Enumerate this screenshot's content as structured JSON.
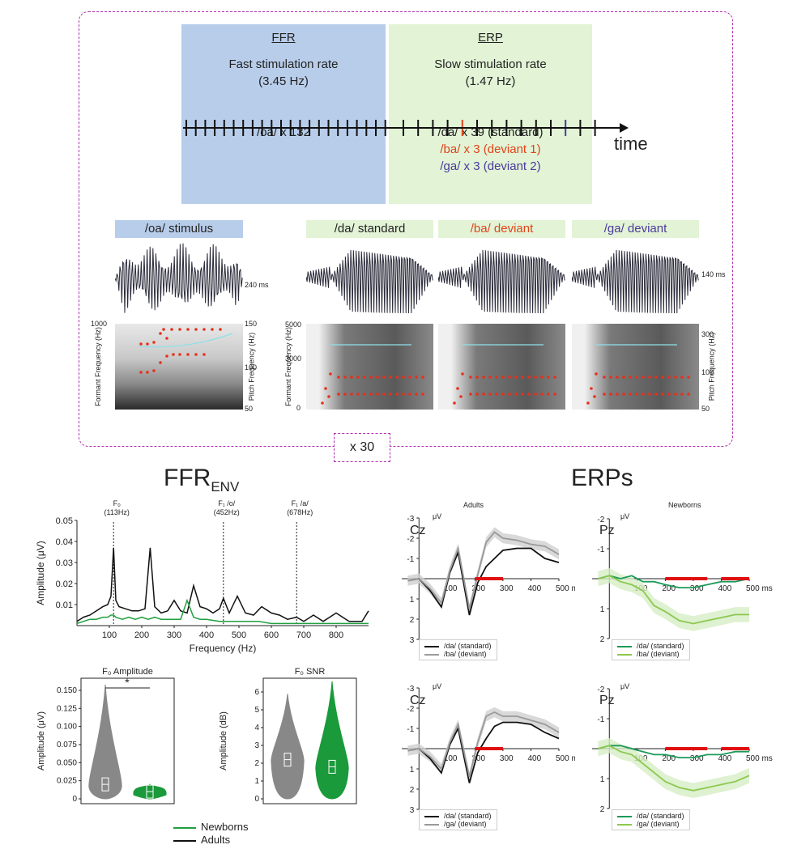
{
  "design": {
    "ffr_panel": {
      "title": "FFR",
      "rate_label": "Fast stimulation rate",
      "rate_value": "(3.45 Hz)",
      "count": "/oa/ x 132"
    },
    "erp_panel": {
      "title": "ERP",
      "rate_label": "Slow stimulation rate",
      "rate_value": "(1.47 Hz)",
      "standard": "/da/ x 39 (standard)",
      "deviant1": "/ba/ x 3 (deviant 1)",
      "deviant2": "/ga/ x 3 (deviant 2)"
    },
    "time_label": "time",
    "repeat_label": "x 30",
    "colors": {
      "deviant1": "#e0451a",
      "deviant2": "#4a3a9c",
      "ffr_bg": "#b8cdea",
      "erp_bg": "#e2f3d6",
      "frame": "#b030b0"
    }
  },
  "stimuli": {
    "oa": {
      "title": "/oa/ stimulus",
      "duration": "240 ms",
      "formant_axis": "Formant Frequency (Hz)",
      "pitch_axis": "Pitch Frequency (Hz)",
      "formant_ticks": [
        "1000"
      ],
      "pitch_ticks": [
        "150",
        "100",
        "50"
      ]
    },
    "da": {
      "title": "/da/ standard",
      "duration": "140 ms"
    },
    "ba": {
      "title": "/ba/ deviant"
    },
    "ga": {
      "title": "/ga/ deviant",
      "duration": "140 ms"
    },
    "formant_axis": "Formant Frequency (Hz)",
    "pitch_axis": "Pitch Frequency (Hz)",
    "formant_ticks": [
      "5000",
      "3000",
      "0"
    ],
    "pitch_ticks": [
      "300",
      "100",
      "50"
    ]
  },
  "ffr_section": {
    "title": "FFR",
    "title_sub": "ENV",
    "spectrum": {
      "ylabel": "Amplitude (μV)",
      "xlabel": "Frequency (Hz)",
      "yticks": [
        "0.05",
        "0.04",
        "0.03",
        "0.02",
        "0.01"
      ],
      "xticks": [
        "100",
        "200",
        "300",
        "400",
        "500",
        "600",
        "700",
        "800"
      ],
      "markers": [
        {
          "label": "F₀",
          "value": "(113Hz)"
        },
        {
          "label": "F₁ /o/",
          "value": "(452Hz)"
        },
        {
          "label": "F₁ /a/",
          "value": "(678Hz)"
        }
      ]
    },
    "violin_amp": {
      "title": "F₀ Amplitude",
      "ylabel": "Amplitude (μV)",
      "yticks": [
        "0.150",
        "0.125",
        "0.100",
        "0.075",
        "0.050",
        "0.025",
        "0"
      ],
      "sig": "*"
    },
    "violin_snr": {
      "title": "F₀ SNR",
      "ylabel": "Amplitude (dB)",
      "yticks": [
        "6",
        "5",
        "4",
        "3",
        "2",
        "1",
        "0"
      ]
    },
    "legend": {
      "newborns": "Newborns",
      "adults": "Adults"
    }
  },
  "erp_section": {
    "title": "ERPs",
    "adults_title": "Adults",
    "newborns_title": "Newborns",
    "cz": "Cz",
    "pz": "Pz",
    "unit": "μV",
    "ms_ticks": [
      "100",
      "200",
      "300",
      "400",
      "500 ms"
    ],
    "adult_yticks": [
      "-3",
      "-2",
      "-1",
      "1",
      "2",
      "3"
    ],
    "newborn_yticks": [
      "-2",
      "-1",
      "1",
      "2"
    ],
    "legends": {
      "da_std": "/da/ (standard)",
      "ba_dev": "/ba/ (deviant)",
      "ga_dev": "/ga/ (deviant)"
    }
  },
  "chart_data": [
    {
      "type": "line",
      "title": "FFR ENV spectrum",
      "xlabel": "Frequency (Hz)",
      "ylabel": "Amplitude (μV)",
      "xlim": [
        0,
        900
      ],
      "ylim": [
        0,
        0.05
      ],
      "series": [
        {
          "name": "Adults",
          "color": "#111111",
          "x": [
            0,
            20,
            40,
            60,
            80,
            95,
            105,
            113,
            120,
            130,
            150,
            170,
            190,
            210,
            226,
            240,
            260,
            280,
            300,
            320,
            340,
            360,
            380,
            400,
            420,
            440,
            452,
            470,
            495,
            520,
            545,
            570,
            600,
            625,
            650,
            678,
            700,
            730,
            760,
            800,
            840,
            880,
            900
          ],
          "y": [
            0.002,
            0.004,
            0.005,
            0.007,
            0.009,
            0.01,
            0.014,
            0.037,
            0.012,
            0.009,
            0.008,
            0.007,
            0.007,
            0.008,
            0.037,
            0.009,
            0.006,
            0.007,
            0.012,
            0.007,
            0.006,
            0.019,
            0.009,
            0.008,
            0.006,
            0.008,
            0.013,
            0.006,
            0.014,
            0.006,
            0.005,
            0.009,
            0.006,
            0.005,
            0.003,
            0.004,
            0.002,
            0.005,
            0.002,
            0.006,
            0.002,
            0.002,
            0.007
          ]
        },
        {
          "name": "Newborns",
          "color": "#22a040",
          "x": [
            0,
            20,
            40,
            60,
            80,
            95,
            105,
            113,
            120,
            140,
            160,
            180,
            200,
            220,
            240,
            260,
            280,
            300,
            320,
            340,
            360,
            380,
            400,
            440,
            480,
            520,
            560,
            600,
            700,
            800,
            900
          ],
          "y": [
            0.001,
            0.002,
            0.003,
            0.003,
            0.004,
            0.004,
            0.005,
            0.005,
            0.004,
            0.003,
            0.004,
            0.003,
            0.004,
            0.003,
            0.004,
            0.003,
            0.003,
            0.003,
            0.003,
            0.012,
            0.004,
            0.003,
            0.003,
            0.002,
            0.002,
            0.002,
            0.002,
            0.001,
            0.001,
            0.001,
            0.001
          ]
        }
      ],
      "annotations": [
        {
          "x": 113,
          "label": "F₀ (113Hz)"
        },
        {
          "x": 452,
          "label": "F₁ /o/ (452Hz)"
        },
        {
          "x": 678,
          "label": "F₁ /a/ (678Hz)"
        }
      ]
    },
    {
      "type": "violin",
      "title": "F₀ Amplitude",
      "ylabel": "Amplitude (μV)",
      "ylim": [
        0,
        0.16
      ],
      "groups": [
        {
          "name": "Adults",
          "color": "#888888",
          "median": 0.02,
          "max": 0.158
        },
        {
          "name": "Newborns",
          "color": "#1a9a3a",
          "median": 0.01,
          "max": 0.02
        }
      ],
      "significance": "*"
    },
    {
      "type": "violin",
      "title": "F₀ SNR",
      "ylabel": "Amplitude (dB)",
      "ylim": [
        0,
        6.5
      ],
      "groups": [
        {
          "name": "Adults",
          "color": "#888888",
          "median": 2.2,
          "max": 5.9
        },
        {
          "name": "Newborns",
          "color": "#1a9a3a",
          "median": 1.8,
          "max": 6.6
        }
      ]
    },
    {
      "type": "line",
      "title": "Adults Cz /da/ vs /ba/",
      "xlim": [
        -50,
        500
      ],
      "ylim": [
        -3,
        3
      ],
      "xlabel": "ms",
      "ylabel": "μV",
      "series": [
        {
          "name": "/da/ (standard)",
          "color": "#111111",
          "x": [
            -40,
            0,
            40,
            80,
            110,
            140,
            180,
            210,
            240,
            270,
            300,
            350,
            400,
            450,
            500
          ],
          "y": [
            0.1,
            0,
            0.6,
            1.4,
            -0.3,
            -1.3,
            1.8,
            0.2,
            -0.6,
            -1.0,
            -1.4,
            -1.5,
            -1.5,
            -1.0,
            -0.8
          ]
        },
        {
          "name": "/ba/ (deviant)",
          "color": "#9a9a9a",
          "x": [
            -40,
            0,
            40,
            80,
            110,
            140,
            180,
            210,
            240,
            270,
            300,
            350,
            400,
            450,
            500
          ],
          "y": [
            0.1,
            0,
            0.5,
            1.2,
            -0.4,
            -1.5,
            1.5,
            -0.2,
            -1.8,
            -2.3,
            -2.0,
            -1.9,
            -1.7,
            -1.6,
            -1.2
          ]
        }
      ],
      "significant_window": [
        200,
        300
      ]
    },
    {
      "type": "line",
      "title": "Newborns Pz /da/ vs /ba/",
      "xlim": [
        -50,
        500
      ],
      "ylim": [
        -2,
        2
      ],
      "xlabel": "ms",
      "ylabel": "μV",
      "series": [
        {
          "name": "/da/ (standard)",
          "color": "#1a9a5a",
          "x": [
            -40,
            0,
            40,
            80,
            120,
            160,
            200,
            250,
            300,
            350,
            400,
            450,
            500
          ],
          "y": [
            0,
            -0.1,
            0,
            -0.1,
            0.1,
            0.1,
            0.2,
            0.3,
            0.3,
            0.2,
            0.1,
            0.1,
            0.0
          ]
        },
        {
          "name": "/ba/ (deviant)",
          "color": "#8cc850",
          "x": [
            -40,
            0,
            40,
            80,
            120,
            160,
            200,
            250,
            300,
            350,
            400,
            450,
            500
          ],
          "y": [
            0,
            -0.1,
            0.1,
            0.2,
            0.4,
            0.9,
            1.1,
            1.4,
            1.5,
            1.4,
            1.3,
            1.2,
            1.2
          ]
        }
      ],
      "significant_window": [
        200,
        500
      ]
    },
    {
      "type": "line",
      "title": "Adults Cz /da/ vs /ga/",
      "xlim": [
        -50,
        500
      ],
      "ylim": [
        -3,
        3
      ],
      "xlabel": "ms",
      "ylabel": "μV",
      "series": [
        {
          "name": "/da/ (standard)",
          "color": "#111111",
          "x": [
            -40,
            0,
            40,
            80,
            110,
            140,
            180,
            210,
            240,
            270,
            300,
            350,
            400,
            450,
            500
          ],
          "y": [
            0.1,
            0,
            0.5,
            1.2,
            -0.2,
            -1.0,
            1.7,
            0.2,
            -0.5,
            -1.1,
            -1.3,
            -1.3,
            -1.2,
            -0.8,
            -0.5
          ]
        },
        {
          "name": "/ga/ (deviant)",
          "color": "#9a9a9a",
          "x": [
            -40,
            0,
            40,
            80,
            110,
            140,
            180,
            210,
            240,
            270,
            300,
            350,
            400,
            450,
            500
          ],
          "y": [
            0.1,
            0,
            0.4,
            1.0,
            -0.3,
            -1.2,
            1.4,
            -0.3,
            -1.6,
            -1.8,
            -1.6,
            -1.6,
            -1.4,
            -1.2,
            -0.8
          ]
        }
      ],
      "significant_window": [
        200,
        300
      ]
    },
    {
      "type": "line",
      "title": "Newborns Pz /da/ vs /ga/",
      "xlim": [
        -50,
        500
      ],
      "ylim": [
        -2,
        2
      ],
      "xlabel": "ms",
      "ylabel": "μV",
      "series": [
        {
          "name": "/da/ (standard)",
          "color": "#1a9a5a",
          "x": [
            -40,
            0,
            40,
            80,
            120,
            160,
            200,
            250,
            300,
            350,
            400,
            450,
            500
          ],
          "y": [
            0,
            -0.1,
            -0.1,
            0,
            0.1,
            0.2,
            0.2,
            0.3,
            0.3,
            0.2,
            0.2,
            0.1,
            0.1
          ]
        },
        {
          "name": "/ga/ (deviant)",
          "color": "#8cc850",
          "x": [
            -40,
            0,
            40,
            80,
            120,
            160,
            200,
            250,
            300,
            350,
            400,
            450,
            500
          ],
          "y": [
            0,
            -0.1,
            0.1,
            0.2,
            0.5,
            0.8,
            1.1,
            1.3,
            1.4,
            1.3,
            1.2,
            1.1,
            0.9
          ]
        }
      ],
      "significant_window": [
        200,
        500
      ]
    }
  ]
}
